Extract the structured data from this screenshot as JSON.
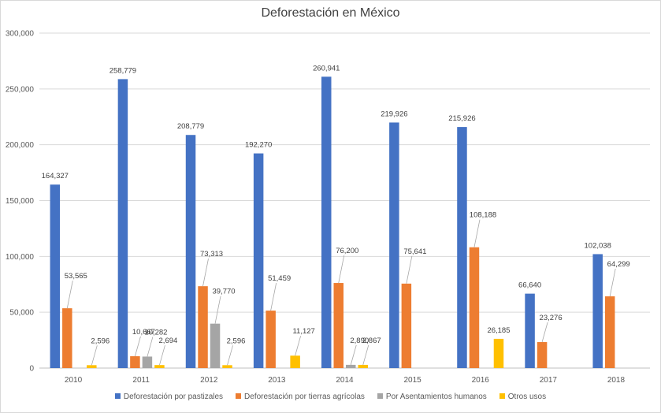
{
  "chart_data": {
    "type": "bar",
    "title": "Deforestación en México",
    "xlabel": "",
    "ylabel": "",
    "ylim": [
      0,
      300000
    ],
    "yticks": [
      0,
      50000,
      100000,
      150000,
      200000,
      250000,
      300000
    ],
    "ytick_labels": [
      "0",
      "50,000",
      "100,000",
      "150,000",
      "200,000",
      "250,000",
      "300,000"
    ],
    "grid": true,
    "legend_position": "bottom",
    "categories": [
      "2010",
      "2011",
      "2012",
      "2013",
      "2014",
      "2015",
      "2016",
      "2017",
      "2018"
    ],
    "series": [
      {
        "name": "Deforestación por pastizales",
        "color": "#4472C4",
        "values": [
          164327,
          258779,
          208779,
          192270,
          260941,
          219926,
          215926,
          66640,
          102038
        ],
        "labels": [
          "164,327",
          "258,779",
          "208,779",
          "192,270",
          "260,941",
          "219,926",
          "215,926",
          "66,640",
          "102,038"
        ]
      },
      {
        "name": "Deforestación por tierras agrícolas",
        "color": "#ED7D31",
        "values": [
          53565,
          10667,
          73313,
          51459,
          76200,
          75641,
          108188,
          23276,
          64299
        ],
        "labels": [
          "53,565",
          "10,667",
          "73,313",
          "51,459",
          "76,200",
          "75,641",
          "108,188",
          "23,276",
          "64,299"
        ]
      },
      {
        "name": "Por Asentamientos humanos",
        "color": "#A5A5A5",
        "values": [
          null,
          10282,
          39770,
          null,
          2890,
          null,
          null,
          null,
          null
        ],
        "labels": [
          null,
          "10,282",
          "39,770",
          null,
          "2,890",
          null,
          null,
          null,
          null
        ]
      },
      {
        "name": "Otros usos",
        "color": "#FFC000",
        "values": [
          2596,
          2694,
          2596,
          11127,
          2867,
          null,
          26185,
          null,
          null
        ],
        "labels": [
          "2,596",
          "2,694",
          "2,596",
          "11,127",
          "2,867",
          null,
          "26,185",
          null,
          null
        ]
      }
    ]
  }
}
